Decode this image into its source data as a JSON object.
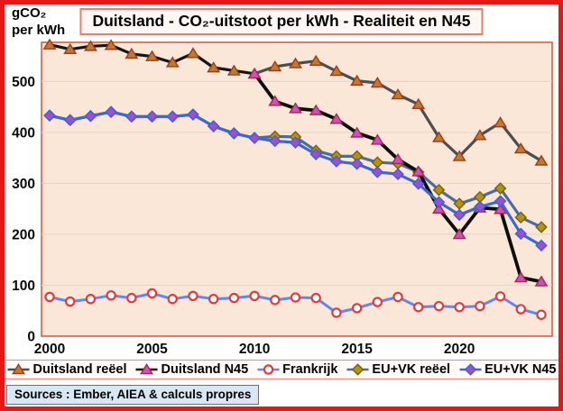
{
  "page": {
    "y_unit_line1": "gCO₂",
    "y_unit_line2": "per kWh",
    "title": "Duitsland - CO₂-uitstoot per kWh - Realiteit en N45",
    "sources_note": "Sources : Ember, AIEA & calculs propres"
  },
  "colors": {
    "frame_red": "#e81717",
    "plot_bg": "#fbe7d8",
    "plot_border": "#dd5a48",
    "gridline": "#e3d4c5",
    "title_box_border": "#ef7b6b",
    "title_box_bg": "#fff7f4",
    "legend_box_border": "#ef8577",
    "legend_box_bg": "#fffaf8",
    "sources_box_bg": "#d9e6f3",
    "sources_box_border": "#6f6f6f",
    "axis_text": "#0a0a0a"
  },
  "chart_data": {
    "type": "line",
    "title": "Duitsland - CO₂-uitstoot per kWh - Realiteit en N45",
    "xlabel": "",
    "ylabel": "gCO₂ per kWh",
    "x_ticks": [
      2000,
      2005,
      2010,
      2015,
      2020
    ],
    "y_ticks": [
      0,
      100,
      200,
      300,
      400,
      500
    ],
    "xlim": [
      2000,
      2024.6
    ],
    "ylim": [
      0,
      576
    ],
    "grid": "horizontal-only",
    "legend_position": "bottom",
    "years": [
      2000,
      2001,
      2002,
      2003,
      2004,
      2005,
      2006,
      2007,
      2008,
      2009,
      2010,
      2011,
      2012,
      2013,
      2014,
      2015,
      2016,
      2017,
      2018,
      2019,
      2020,
      2021,
      2022,
      2023,
      2024
    ],
    "draw_order": [
      2,
      3,
      0,
      1,
      4
    ],
    "series": [
      {
        "name": "Duitsland reëel",
        "marker": "triangle",
        "marker_fill": "#c07b28",
        "marker_stroke": "#a03a1e",
        "line_color": "#151515",
        "line_color_after_split": "#4d4d4d",
        "split_year": 2010,
        "line_width": 3.2,
        "start_year": 2000,
        "values": [
          572,
          563,
          569,
          571,
          554,
          549,
          537,
          555,
          527,
          521,
          515,
          529,
          535,
          540,
          520,
          501,
          497,
          474,
          455,
          390,
          353,
          394,
          419,
          368,
          344
        ]
      },
      {
        "name": "Duitsland N45",
        "marker": "triangle",
        "marker_fill": "#c94fc9",
        "marker_stroke": "#b02446",
        "line_color": "#0d0d0d",
        "line_width": 3.8,
        "start_year": 2010,
        "values": [
          515,
          461,
          447,
          443,
          426,
          399,
          385,
          347,
          323,
          250,
          200,
          252,
          249,
          115,
          107
        ]
      },
      {
        "name": "Frankrijk",
        "marker": "circle",
        "marker_fill": "#ffffff",
        "marker_stroke": "#e23a3a",
        "line_color": "#6487ee",
        "line_width": 3,
        "start_year": 2000,
        "values": [
          77,
          68,
          73,
          80,
          75,
          84,
          73,
          79,
          73,
          75,
          79,
          71,
          76,
          75,
          46,
          55,
          67,
          77,
          57,
          59,
          57,
          59,
          78,
          53,
          42
        ]
      },
      {
        "name": "EU+VK reëel",
        "marker": "diamond",
        "marker_fill": "#b5930f",
        "marker_stroke": "#77600a",
        "line_color": "#4a6d9e",
        "line_width": 3.2,
        "start_year": 2000,
        "values": [
          433,
          424,
          432,
          440,
          431,
          431,
          431,
          435,
          412,
          398,
          389,
          392,
          391,
          364,
          353,
          353,
          341,
          339,
          322,
          287,
          260,
          273,
          290,
          233,
          214
        ]
      },
      {
        "name": "EU+VK N45",
        "marker": "diamond",
        "marker_fill": "#9a4fd4",
        "marker_stroke": "#3f5fd6",
        "line_color": "#3f68cf",
        "line_width": 3.2,
        "start_year": 2000,
        "values": [
          433,
          424,
          432,
          440,
          431,
          431,
          431,
          435,
          412,
          398,
          389,
          383,
          380,
          357,
          343,
          338,
          322,
          318,
          299,
          263,
          238,
          254,
          265,
          201,
          178
        ]
      }
    ]
  }
}
